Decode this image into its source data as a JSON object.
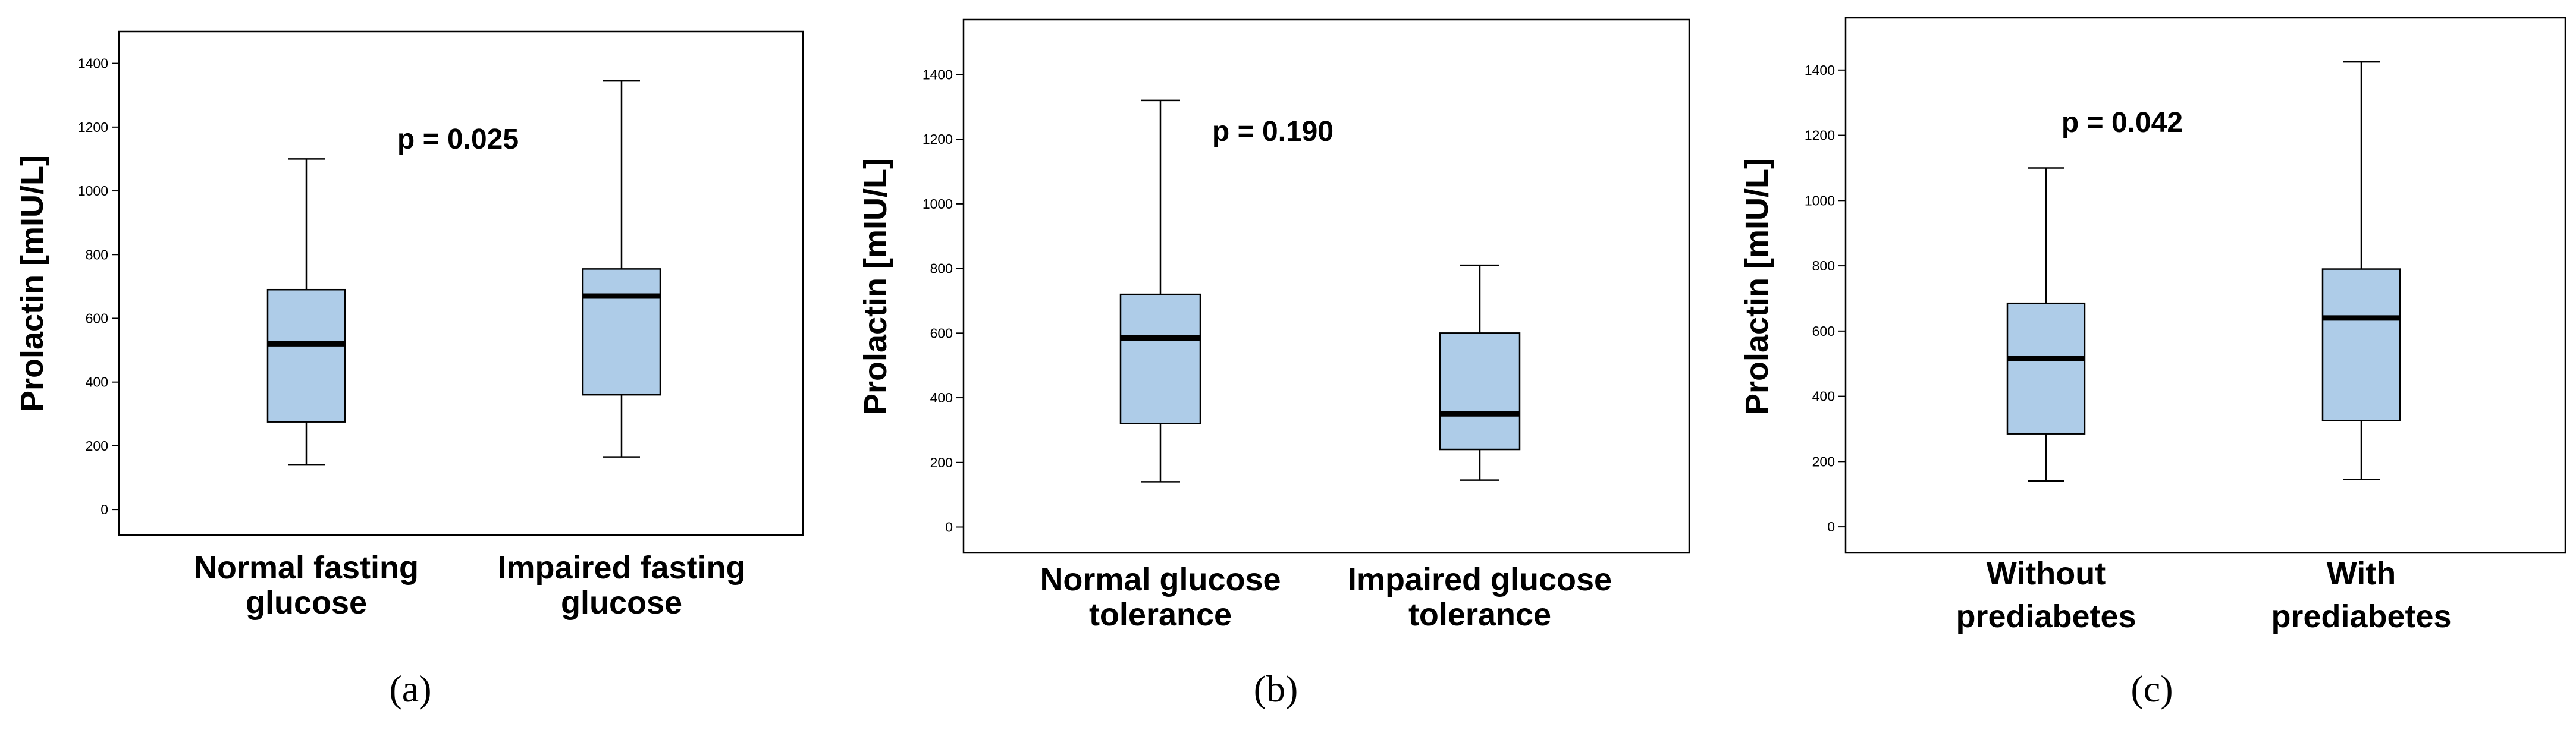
{
  "chart_data": [
    {
      "type": "box",
      "panel_label": "(a)",
      "ylabel": "Prolactin [mIU/L]",
      "ylim": [
        -80,
        1500
      ],
      "yticks": [
        0,
        200,
        400,
        600,
        800,
        1000,
        1200,
        1400
      ],
      "annotation": "p = 0.025",
      "colors": {
        "box_fill": "#aecce8",
        "median": "#000000"
      },
      "series": [
        {
          "name": "Normal fasting glucose",
          "label_lines": [
            "Normal fasting",
            "glucose"
          ],
          "min": 140,
          "q1": 275,
          "median": 520,
          "q3": 690,
          "max": 1100
        },
        {
          "name": "Impaired fasting glucose",
          "label_lines": [
            "Impaired fasting",
            "glucose"
          ],
          "min": 165,
          "q1": 360,
          "median": 670,
          "q3": 755,
          "max": 1345
        }
      ]
    },
    {
      "type": "box",
      "panel_label": "(b)",
      "ylabel": "Prolactin [mIU/L]",
      "ylim": [
        -80,
        1570
      ],
      "yticks": [
        0,
        200,
        400,
        600,
        800,
        1000,
        1200,
        1400
      ],
      "annotation": "p = 0.190",
      "colors": {
        "box_fill": "#aecce8",
        "median": "#000000"
      },
      "series": [
        {
          "name": "Normal glucose tolerance",
          "label_lines": [
            "Normal glucose",
            "tolerance"
          ],
          "min": 140,
          "q1": 320,
          "median": 585,
          "q3": 720,
          "max": 1320
        },
        {
          "name": "Impaired glucose tolerance",
          "label_lines": [
            "Impaired glucose",
            "tolerance"
          ],
          "min": 145,
          "q1": 240,
          "median": 350,
          "q3": 600,
          "max": 810
        }
      ]
    },
    {
      "type": "box",
      "panel_label": "(c)",
      "ylabel": "Prolactin [mIU/L]",
      "ylim": [
        -80,
        1560
      ],
      "yticks": [
        0,
        200,
        400,
        600,
        800,
        1000,
        1200,
        1400
      ],
      "annotation": "p = 0.042",
      "colors": {
        "box_fill": "#aecce8",
        "median": "#000000"
      },
      "series": [
        {
          "name": "Without prediabetes",
          "label_lines": [
            "Without",
            "prediabetes"
          ],
          "min": 140,
          "q1": 285,
          "median": 515,
          "q3": 685,
          "max": 1100
        },
        {
          "name": "With prediabetes",
          "label_lines": [
            "With",
            "prediabetes"
          ],
          "min": 145,
          "q1": 325,
          "median": 640,
          "q3": 790,
          "max": 1425
        }
      ]
    }
  ]
}
